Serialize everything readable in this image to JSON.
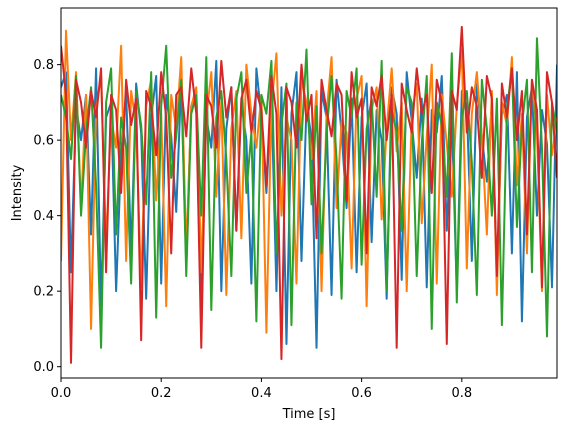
{
  "chart_data": {
    "type": "line",
    "title": "",
    "xlabel": "Time [s]",
    "ylabel": "Intensity",
    "xlim": [
      0.0,
      0.99
    ],
    "ylim": [
      -0.03,
      0.95
    ],
    "xticks": [
      0.0,
      0.2,
      0.4,
      0.6,
      0.8
    ],
    "xtick_labels": [
      "0.0",
      "0.2",
      "0.4",
      "0.6",
      "0.8"
    ],
    "yticks": [
      0.0,
      0.2,
      0.4,
      0.6,
      0.8
    ],
    "ytick_labels": [
      "0.0",
      "0.2",
      "0.4",
      "0.6",
      "0.8"
    ],
    "grid": false,
    "legend": "none",
    "x": [
      0.0,
      0.01,
      0.02,
      0.03,
      0.04,
      0.05,
      0.06,
      0.07,
      0.08,
      0.09,
      0.1,
      0.11,
      0.12,
      0.13,
      0.14,
      0.15,
      0.16,
      0.17,
      0.18,
      0.19,
      0.2,
      0.21,
      0.22,
      0.23,
      0.24,
      0.25,
      0.26,
      0.27,
      0.28,
      0.29,
      0.3,
      0.31,
      0.32,
      0.33,
      0.34,
      0.35,
      0.36,
      0.37,
      0.38,
      0.39,
      0.4,
      0.41,
      0.42,
      0.43,
      0.44,
      0.45,
      0.46,
      0.47,
      0.48,
      0.49,
      0.5,
      0.51,
      0.52,
      0.53,
      0.54,
      0.55,
      0.56,
      0.57,
      0.58,
      0.59,
      0.6,
      0.61,
      0.62,
      0.63,
      0.64,
      0.65,
      0.66,
      0.67,
      0.68,
      0.69,
      0.7,
      0.71,
      0.72,
      0.73,
      0.74,
      0.75,
      0.76,
      0.77,
      0.78,
      0.79,
      0.8,
      0.81,
      0.82,
      0.83,
      0.84,
      0.85,
      0.86,
      0.87,
      0.88,
      0.89,
      0.9,
      0.91,
      0.92,
      0.93,
      0.94,
      0.95,
      0.96,
      0.97,
      0.98,
      0.99
    ],
    "series": [
      {
        "color": "#1f77b4",
        "values": [
          0.74,
          0.78,
          0.25,
          0.69,
          0.6,
          0.72,
          0.35,
          0.79,
          0.16,
          0.66,
          0.7,
          0.2,
          0.56,
          0.73,
          0.3,
          0.75,
          0.62,
          0.18,
          0.66,
          0.77,
          0.22,
          0.72,
          0.61,
          0.41,
          0.76,
          0.27,
          0.69,
          0.73,
          0.18,
          0.66,
          0.58,
          0.81,
          0.2,
          0.63,
          0.74,
          0.36,
          0.7,
          0.6,
          0.22,
          0.79,
          0.66,
          0.46,
          0.72,
          0.2,
          0.74,
          0.06,
          0.67,
          0.78,
          0.28,
          0.69,
          0.61,
          0.05,
          0.73,
          0.66,
          0.19,
          0.76,
          0.62,
          0.42,
          0.71,
          0.25,
          0.66,
          0.75,
          0.33,
          0.68,
          0.6,
          0.18,
          0.74,
          0.67,
          0.23,
          0.78,
          0.65,
          0.5,
          0.71,
          0.21,
          0.68,
          0.62,
          0.77,
          0.36,
          0.66,
          0.2,
          0.73,
          0.69,
          0.28,
          0.75,
          0.61,
          0.49,
          0.7,
          0.23,
          0.67,
          0.72,
          0.3,
          0.78,
          0.12,
          0.66,
          0.74,
          0.4,
          0.68,
          0.59,
          0.21,
          0.8
        ]
      },
      {
        "color": "#ff7f0e",
        "values": [
          0.28,
          0.89,
          0.6,
          0.78,
          0.42,
          0.72,
          0.1,
          0.68,
          0.77,
          0.32,
          0.66,
          0.58,
          0.85,
          0.28,
          0.73,
          0.64,
          0.21,
          0.69,
          0.76,
          0.44,
          0.67,
          0.16,
          0.72,
          0.63,
          0.82,
          0.3,
          0.69,
          0.74,
          0.25,
          0.66,
          0.78,
          0.45,
          0.7,
          0.19,
          0.63,
          0.73,
          0.34,
          0.8,
          0.67,
          0.58,
          0.72,
          0.09,
          0.69,
          0.83,
          0.4,
          0.66,
          0.6,
          0.22,
          0.76,
          0.7,
          0.55,
          0.73,
          0.2,
          0.67,
          0.82,
          0.42,
          0.65,
          0.62,
          0.26,
          0.71,
          0.77,
          0.16,
          0.68,
          0.74,
          0.39,
          0.63,
          0.79,
          0.57,
          0.7,
          0.2,
          0.66,
          0.75,
          0.38,
          0.61,
          0.8,
          0.22,
          0.72,
          0.59,
          0.45,
          0.69,
          0.84,
          0.26,
          0.67,
          0.78,
          0.61,
          0.35,
          0.73,
          0.19,
          0.7,
          0.64,
          0.82,
          0.48,
          0.67,
          0.3,
          0.76,
          0.62,
          0.2,
          0.72,
          0.56,
          0.66
        ]
      },
      {
        "color": "#2ca02c",
        "values": [
          0.72,
          0.66,
          0.55,
          0.77,
          0.4,
          0.62,
          0.74,
          0.48,
          0.05,
          0.7,
          0.79,
          0.35,
          0.66,
          0.58,
          0.22,
          0.73,
          0.64,
          0.43,
          0.78,
          0.13,
          0.69,
          0.85,
          0.5,
          0.61,
          0.76,
          0.24,
          0.67,
          0.72,
          0.4,
          0.82,
          0.15,
          0.66,
          0.73,
          0.55,
          0.24,
          0.71,
          0.78,
          0.46,
          0.62,
          0.12,
          0.72,
          0.67,
          0.81,
          0.3,
          0.64,
          0.75,
          0.11,
          0.7,
          0.6,
          0.84,
          0.43,
          0.69,
          0.3,
          0.62,
          0.77,
          0.55,
          0.18,
          0.73,
          0.66,
          0.79,
          0.27,
          0.63,
          0.71,
          0.45,
          0.81,
          0.2,
          0.68,
          0.62,
          0.36,
          0.74,
          0.7,
          0.24,
          0.59,
          0.77,
          0.1,
          0.7,
          0.64,
          0.45,
          0.83,
          0.17,
          0.66,
          0.73,
          0.54,
          0.19,
          0.76,
          0.63,
          0.4,
          0.71,
          0.11,
          0.68,
          0.79,
          0.37,
          0.64,
          0.76,
          0.25,
          0.87,
          0.58,
          0.08,
          0.7,
          0.62
        ]
      },
      {
        "color": "#d62728",
        "values": [
          0.85,
          0.72,
          0.01,
          0.76,
          0.7,
          0.58,
          0.73,
          0.66,
          0.79,
          0.25,
          0.72,
          0.68,
          0.46,
          0.76,
          0.64,
          0.71,
          0.07,
          0.73,
          0.69,
          0.56,
          0.78,
          0.66,
          0.3,
          0.72,
          0.74,
          0.61,
          0.79,
          0.67,
          0.05,
          0.72,
          0.69,
          0.58,
          0.81,
          0.66,
          0.74,
          0.36,
          0.71,
          0.76,
          0.62,
          0.73,
          0.68,
          0.48,
          0.77,
          0.67,
          0.02,
          0.74,
          0.7,
          0.58,
          0.8,
          0.65,
          0.72,
          0.34,
          0.76,
          0.68,
          0.61,
          0.75,
          0.72,
          0.44,
          0.78,
          0.66,
          0.71,
          0.3,
          0.74,
          0.69,
          0.77,
          0.6,
          0.72,
          0.05,
          0.75,
          0.68,
          0.62,
          0.79,
          0.67,
          0.72,
          0.46,
          0.76,
          0.7,
          0.06,
          0.73,
          0.68,
          0.9,
          0.62,
          0.74,
          0.69,
          0.5,
          0.77,
          0.71,
          0.24,
          0.75,
          0.66,
          0.79,
          0.6,
          0.73,
          0.35,
          0.76,
          0.68,
          0.21,
          0.78,
          0.7,
          0.5
        ]
      }
    ]
  }
}
